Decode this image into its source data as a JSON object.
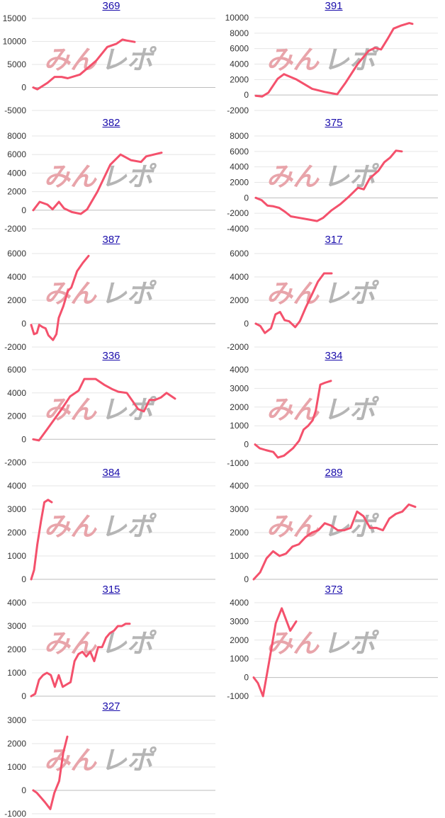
{
  "watermark": {
    "part1": "みん",
    "part2": "レポ",
    "color1": "#e8a4aa",
    "color2": "#b5b5b5"
  },
  "colors": {
    "line": "#f4516c",
    "grid": "#e6e6e6",
    "zero_line": "#bdbdbd",
    "link": "#1a0dab"
  },
  "chart_data": [
    {
      "type": "line",
      "title": "369",
      "yticks": [
        -5000,
        0,
        5000,
        10000,
        15000
      ],
      "x_frac": [
        0,
        0.04,
        0.14,
        0.21,
        0.28,
        0.34,
        0.46,
        0.62,
        0.73,
        0.82,
        0.88,
        0.92,
        1.0
      ],
      "values": [
        0,
        -400,
        1000,
        2300,
        2300,
        2000,
        2800,
        5800,
        8800,
        9500,
        10400,
        10200,
        9900
      ]
    },
    {
      "type": "line",
      "title": "391",
      "yticks": [
        -2000,
        0,
        2000,
        4000,
        6000,
        8000,
        10000
      ],
      "x_frac": [
        0,
        0.04,
        0.08,
        0.14,
        0.18,
        0.26,
        0.36,
        0.44,
        0.52,
        0.57,
        0.65,
        0.72,
        0.76,
        0.8,
        0.84,
        0.88,
        0.93,
        0.98,
        1.0
      ],
      "values": [
        -100,
        -200,
        300,
        2100,
        2700,
        2000,
        800,
        400,
        100,
        1500,
        4000,
        5700,
        6100,
        5900,
        7200,
        8600,
        9000,
        9300,
        9200
      ]
    },
    {
      "type": "line",
      "title": "382",
      "yticks": [
        -2000,
        0,
        2000,
        4000,
        6000,
        8000
      ],
      "x_frac": [
        0,
        0.05,
        0.11,
        0.15,
        0.2,
        0.24,
        0.3,
        0.37,
        0.42,
        0.5,
        0.6,
        0.68,
        0.72,
        0.76,
        0.84,
        0.88,
        0.94,
        1.0
      ],
      "values": [
        0,
        900,
        600,
        100,
        900,
        200,
        -200,
        -400,
        100,
        2000,
        4900,
        6000,
        5700,
        5400,
        5200,
        5800,
        6000,
        6200
      ]
    },
    {
      "type": "line",
      "title": "375",
      "yticks": [
        -4000,
        -2000,
        0,
        2000,
        4000,
        6000,
        8000
      ],
      "x_frac": [
        0,
        0.04,
        0.08,
        0.12,
        0.16,
        0.2,
        0.24,
        0.3,
        0.36,
        0.42,
        0.46,
        0.52,
        0.58,
        0.64,
        0.7,
        0.74,
        0.78,
        0.84,
        0.88,
        0.92,
        0.96,
        1.0
      ],
      "values": [
        0,
        -300,
        -1000,
        -1100,
        -1300,
        -1800,
        -2400,
        -2600,
        -2800,
        -3000,
        -2600,
        -1600,
        -800,
        200,
        1300,
        1100,
        2500,
        3500,
        4600,
        5200,
        6100,
        6000
      ]
    },
    {
      "type": "line",
      "title": "387",
      "yticks": [
        -2000,
        0,
        2000,
        4000,
        6000
      ],
      "x_frac": [
        0,
        0.05,
        0.1,
        0.14,
        0.2,
        0.25,
        0.3,
        0.38,
        0.44,
        0.48,
        0.56,
        0.64,
        0.7,
        0.8,
        0.9,
        1.0
      ],
      "values": [
        -100,
        -900,
        -800,
        -100,
        -300,
        -400,
        -1000,
        -1400,
        -900,
        500,
        1500,
        2800,
        3100,
        4500,
        5200,
        5800
      ]
    },
    {
      "type": "line",
      "title": "317",
      "yticks": [
        -2000,
        0,
        2000,
        4000,
        6000
      ],
      "x_frac": [
        0,
        0.06,
        0.12,
        0.2,
        0.26,
        0.32,
        0.38,
        0.44,
        0.52,
        0.58,
        0.66,
        0.74,
        0.82,
        0.9,
        1.0
      ],
      "values": [
        0,
        -200,
        -800,
        -400,
        800,
        1000,
        300,
        200,
        -300,
        200,
        1400,
        2500,
        3600,
        4300,
        4300
      ]
    },
    {
      "type": "line",
      "title": "336",
      "yticks": [
        -2000,
        0,
        2000,
        4000,
        6000
      ],
      "x_frac": [
        0,
        0.04,
        0.1,
        0.2,
        0.26,
        0.32,
        0.36,
        0.44,
        0.5,
        0.56,
        0.6,
        0.66,
        0.7,
        0.74,
        0.78,
        0.82,
        0.86,
        0.9,
        0.94,
        1.0
      ],
      "values": [
        0,
        -100,
        900,
        2600,
        3700,
        4200,
        5200,
        5200,
        4700,
        4300,
        4100,
        4000,
        3300,
        2600,
        2400,
        3400,
        3400,
        3600,
        4000,
        3500
      ]
    },
    {
      "type": "line",
      "title": "334",
      "yticks": [
        -1000,
        0,
        1000,
        2000,
        3000,
        4000
      ],
      "x_frac": [
        0,
        0.06,
        0.14,
        0.24,
        0.3,
        0.38,
        0.44,
        0.5,
        0.58,
        0.64,
        0.7,
        0.76,
        0.8,
        0.86,
        0.92,
        1.0
      ],
      "values": [
        0,
        -200,
        -300,
        -400,
        -700,
        -600,
        -400,
        -200,
        200,
        800,
        1000,
        1300,
        1800,
        3200,
        3300,
        3400
      ]
    },
    {
      "type": "line",
      "title": "384",
      "yticks": [
        0,
        1000,
        2000,
        3000,
        4000
      ],
      "x_frac": [
        0,
        0.14,
        0.3,
        0.48,
        0.64,
        0.82,
        1.0
      ],
      "values": [
        0,
        400,
        1500,
        2500,
        3300,
        3400,
        3300
      ]
    },
    {
      "type": "line",
      "title": "289",
      "yticks": [
        0,
        1000,
        2000,
        3000,
        4000
      ],
      "x_frac": [
        0,
        0.04,
        0.08,
        0.12,
        0.16,
        0.2,
        0.24,
        0.28,
        0.32,
        0.36,
        0.4,
        0.44,
        0.48,
        0.52,
        0.56,
        0.6,
        0.64,
        0.68,
        0.72,
        0.76,
        0.8,
        0.84,
        0.88,
        0.92,
        0.96,
        1.0
      ],
      "values": [
        0,
        300,
        900,
        1200,
        1000,
        1100,
        1400,
        1500,
        1800,
        2000,
        2100,
        2400,
        2300,
        2100,
        2100,
        2200,
        2900,
        2700,
        2200,
        2200,
        2100,
        2600,
        2800,
        2900,
        3200,
        3100
      ]
    },
    {
      "type": "line",
      "title": "315",
      "yticks": [
        0,
        1000,
        2000,
        3000,
        4000
      ],
      "x_frac": [
        0,
        0.04,
        0.08,
        0.12,
        0.16,
        0.2,
        0.24,
        0.28,
        0.32,
        0.36,
        0.4,
        0.44,
        0.48,
        0.52,
        0.56,
        0.6,
        0.64,
        0.68,
        0.72,
        0.76,
        0.8,
        0.84,
        0.88,
        0.92,
        0.96,
        1.0
      ],
      "values": [
        0,
        100,
        700,
        900,
        1000,
        900,
        400,
        900,
        400,
        500,
        600,
        1500,
        1800,
        1900,
        1700,
        1900,
        1500,
        2100,
        2100,
        2500,
        2700,
        2800,
        3000,
        3000,
        3100,
        3100
      ]
    },
    {
      "type": "line",
      "title": "373",
      "yticks": [
        -1000,
        0,
        1000,
        2000,
        3000,
        4000
      ],
      "x_frac": [
        0,
        0.1,
        0.22,
        0.36,
        0.52,
        0.66,
        0.86,
        1.0
      ],
      "values": [
        0,
        -300,
        -1000,
        800,
        2900,
        3700,
        2500,
        3000
      ]
    },
    {
      "type": "line",
      "title": "327",
      "yticks": [
        -1000,
        0,
        1000,
        2000,
        3000
      ],
      "x_frac": [
        0,
        0.1,
        0.22,
        0.34,
        0.5,
        0.62,
        0.76,
        0.88,
        1.0
      ],
      "values": [
        0,
        -100,
        -300,
        -500,
        -800,
        -100,
        400,
        1600,
        2300
      ]
    }
  ]
}
